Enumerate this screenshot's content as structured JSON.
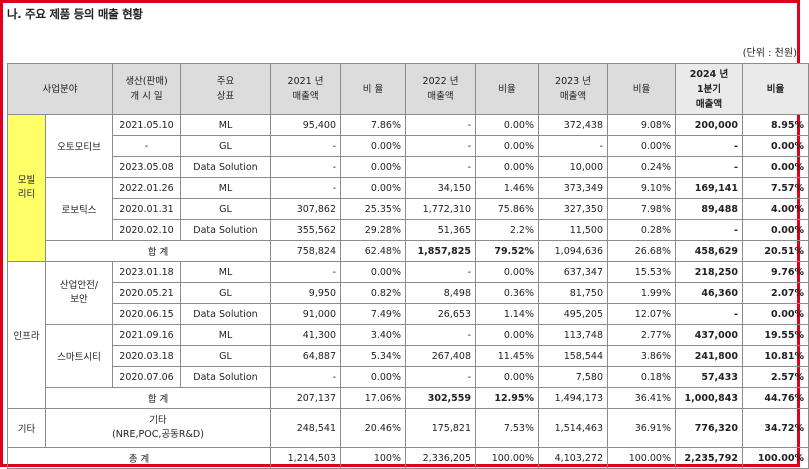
{
  "title": "나. 주요 제품 등의 매출 현황",
  "unit": "(단위 : 천원)",
  "headers": {
    "field": "사업분야",
    "launch_1": "생산(판매)",
    "launch_2": "개 시 일",
    "product_1": "주요",
    "product_2": "상표",
    "s2021_1": "2021 년",
    "s2021_2": "매출액",
    "r2021": "비 율",
    "s2022_1": "2022 년",
    "s2022_2": "매출액",
    "r2022": "비율",
    "s2023_1": "2023 년",
    "s2023_2": "매출액",
    "r2023": "비율",
    "s2024_1": "2024 년",
    "s2024_2": "1분기",
    "s2024_3": "매출액",
    "r2024": "비율"
  },
  "mobility": {
    "label_1": "모빌",
    "label_2": "리티",
    "automotive": "오토모티브",
    "robotics": "로보틱스",
    "automotive_rows": [
      [
        "2021.05.10",
        "ML",
        "95,400",
        "7.86%",
        "-",
        "0.00%",
        "372,438",
        "9.08%",
        "200,000",
        "8.95%"
      ],
      [
        "-",
        "GL",
        "-",
        "0.00%",
        "-",
        "0.00%",
        "-",
        "0.00%",
        "-",
        "0.00%"
      ],
      [
        "2023.05.08",
        "Data Solution",
        "-",
        "0.00%",
        "-",
        "0.00%",
        "10,000",
        "0.24%",
        "-",
        "0.00%"
      ]
    ],
    "robotics_rows": [
      [
        "2022.01.26",
        "ML",
        "-",
        "0.00%",
        "34,150",
        "1.46%",
        "373,349",
        "9.10%",
        "169,141",
        "7.57%"
      ],
      [
        "2020.01.31",
        "GL",
        "307,862",
        "25.35%",
        "1,772,310",
        "75.86%",
        "327,350",
        "7.98%",
        "89,488",
        "4.00%"
      ],
      [
        "2020.02.10",
        "Data Solution",
        "355,562",
        "29.28%",
        "51,365",
        "2.2%",
        "11,500",
        "0.28%",
        "-",
        "0.00%"
      ]
    ],
    "subtotal_label": "합 계",
    "subtotal": [
      "758,824",
      "62.48%",
      "1,857,825",
      "79.52%",
      "1,094,636",
      "26.68%",
      "458,629",
      "20.51%"
    ]
  },
  "infra": {
    "label": "인프라",
    "safety_1": "산업안전/",
    "safety_2": "보안",
    "smartcity": "스마트시티",
    "safety_rows": [
      [
        "2023.01.18",
        "ML",
        "-",
        "0.00%",
        "-",
        "0.00%",
        "637,347",
        "15.53%",
        "218,250",
        "9.76%"
      ],
      [
        "2020.05.21",
        "GL",
        "9,950",
        "0.82%",
        "8,498",
        "0.36%",
        "81,750",
        "1.99%",
        "46,360",
        "2.07%"
      ],
      [
        "2020.06.15",
        "Data Solution",
        "91,000",
        "7.49%",
        "26,653",
        "1.14%",
        "495,205",
        "12.07%",
        "-",
        "0.00%"
      ]
    ],
    "smartcity_rows": [
      [
        "2021.09.16",
        "ML",
        "41,300",
        "3.40%",
        "-",
        "0.00%",
        "113,748",
        "2.77%",
        "437,000",
        "19.55%"
      ],
      [
        "2020.03.18",
        "GL",
        "64,887",
        "5.34%",
        "267,408",
        "11.45%",
        "158,544",
        "3.86%",
        "241,800",
        "10.81%"
      ],
      [
        "2020.07.06",
        "Data Solution",
        "-",
        "0.00%",
        "-",
        "0.00%",
        "7,580",
        "0.18%",
        "57,433",
        "2.57%"
      ]
    ],
    "subtotal_label": "합 계",
    "subtotal": [
      "207,137",
      "17.06%",
      "302,559",
      "12.95%",
      "1,494,173",
      "36.41%",
      "1,000,843",
      "44.76%"
    ]
  },
  "other": {
    "label": "기타",
    "desc_1": "기타",
    "desc_2": "(NRE,POC,공동R&D)",
    "values": [
      "248,541",
      "20.46%",
      "175,821",
      "7.53%",
      "1,514,463",
      "36.91%",
      "776,320",
      "34.72%"
    ]
  },
  "total": {
    "label": "총 계",
    "values": [
      "1,214,503",
      "100%",
      "2,336,205",
      "100.00%",
      "4,103,272",
      "100.00%",
      "2,235,792",
      "100.00%"
    ]
  }
}
